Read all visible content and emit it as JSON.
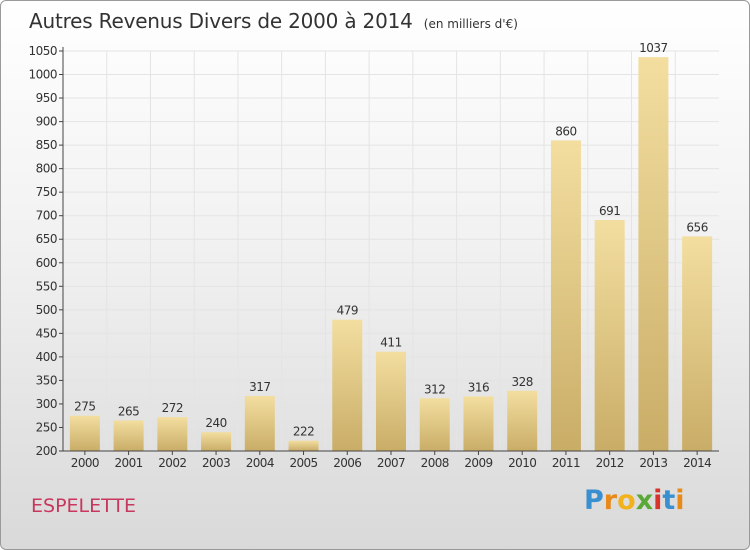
{
  "title": "Autres Revenus Divers de 2000 à 2014",
  "subtitle": "(en milliers d'€)",
  "location": "ESPELETTE",
  "logo": {
    "text": "Proxiti",
    "letters": [
      "P",
      "r",
      "o",
      "x",
      "i",
      "t",
      "i"
    ],
    "colors": [
      "#3a8fd0",
      "#e88a1a",
      "#f2b21b",
      "#5ba935",
      "#d8342c",
      "#3a8fd0",
      "#e88a1a"
    ]
  },
  "colors": {
    "bar_light": "#f3dea0",
    "bar_dark": "#c9ad67",
    "grid": "#e4e4e4",
    "axis": "#444444",
    "location": "#c8375d"
  },
  "chart_data": {
    "type": "bar",
    "categories": [
      "2000",
      "2001",
      "2002",
      "2003",
      "2004",
      "2005",
      "2006",
      "2007",
      "2008",
      "2009",
      "2010",
      "2011",
      "2012",
      "2013",
      "2014"
    ],
    "values": [
      275,
      265,
      272,
      240,
      317,
      222,
      479,
      411,
      312,
      316,
      328,
      860,
      691,
      1037,
      656
    ],
    "ylim": [
      200,
      1050
    ],
    "yticks": [
      200,
      250,
      300,
      350,
      400,
      450,
      500,
      550,
      600,
      650,
      700,
      750,
      800,
      850,
      900,
      950,
      1000,
      1050
    ],
    "grid": true,
    "legend": "none"
  }
}
